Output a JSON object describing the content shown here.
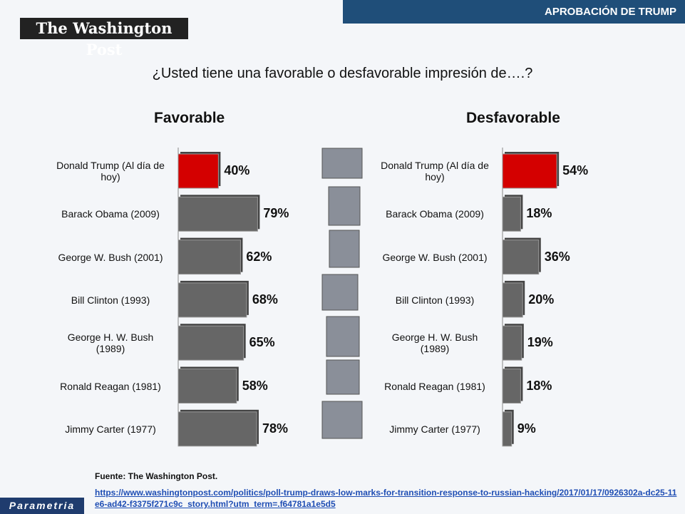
{
  "header": "APROBACIÓN DE TRUMP",
  "logo": "The Washington Post",
  "title": "¿Usted tiene una favorable o desfavorable impresión de….?",
  "chart_data": [
    {
      "type": "bar",
      "title": "Favorable",
      "categories": [
        "Donald Trump (Al día de hoy)",
        "Barack Obama (2009)",
        "George W. Bush (2001)",
        "Bill Clinton (1993)",
        "George H. W. Bush (1989)",
        "Ronald Reagan (1981)",
        "Jimmy Carter (1977)"
      ],
      "values": [
        40,
        79,
        62,
        68,
        65,
        58,
        78
      ],
      "value_labels": [
        "40%",
        "79%",
        "62%",
        "68%",
        "65%",
        "58%",
        "78%"
      ],
      "colors": [
        "#d40000",
        "#666666",
        "#666666",
        "#666666",
        "#666666",
        "#666666",
        "#666666"
      ]
    },
    {
      "type": "bar",
      "title": "Desfavorable",
      "categories": [
        "Donald Trump (Al día de hoy)",
        "Barack Obama (2009)",
        "George W. Bush (2001)",
        "Bill Clinton (1993)",
        "George H. W. Bush (1989)",
        "Ronald Reagan (1981)",
        "Jimmy Carter (1977)"
      ],
      "values": [
        54,
        18,
        36,
        20,
        19,
        18,
        9
      ],
      "value_labels": [
        "54%",
        "18%",
        "36%",
        "20%",
        "19%",
        "18%",
        "9%"
      ],
      "colors": [
        "#d40000",
        "#666666",
        "#666666",
        "#666666",
        "#666666",
        "#666666",
        "#666666"
      ]
    }
  ],
  "source": "Fuente: The Washington Post.",
  "url": "https://www.washingtonpost.com/politics/poll-trump-draws-low-marks-for-transition-response-to-russian-hacking/2017/01/17/0926302a-dc25-11e6-ad42-f3375f271c9c_story.html?utm_term=.f64781a1e5d5",
  "brand": "Parametria"
}
